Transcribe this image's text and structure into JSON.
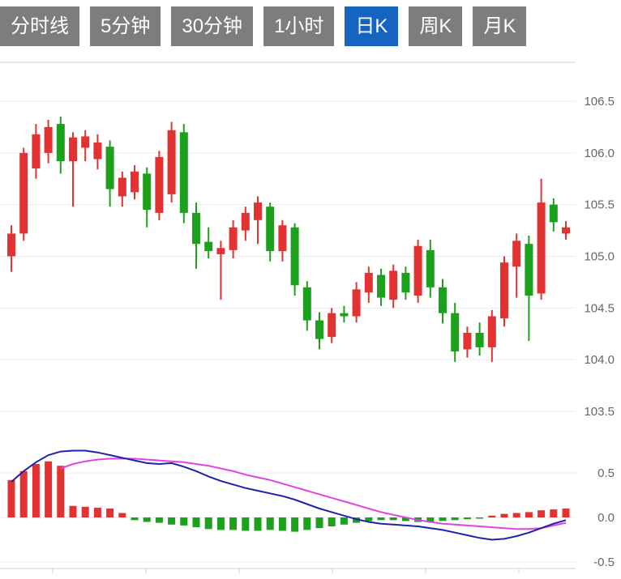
{
  "toolbar": {
    "tabs": [
      {
        "label": "分时线",
        "active": false
      },
      {
        "label": "5分钟",
        "active": false
      },
      {
        "label": "30分钟",
        "active": false
      },
      {
        "label": "1小时",
        "active": false
      },
      {
        "label": "日K",
        "active": true
      },
      {
        "label": "周K",
        "active": false
      },
      {
        "label": "月K",
        "active": false
      }
    ]
  },
  "colors": {
    "up": "#e33232",
    "down": "#1ba11b",
    "dif_line": "#2020aa",
    "dea_line": "#e044e0",
    "tab_bg": "#7d7d7d",
    "tab_active_bg": "#1565c0",
    "tab_text": "#ffffff",
    "grid": "#ebebeb",
    "axis_line": "#d0d0d0",
    "axis_text": "#666666"
  },
  "chart_data": {
    "type": "candlestick+macd",
    "title": "",
    "grid": "horizontal-only",
    "price_panel": {
      "ylim": [
        103.5,
        106.5
      ],
      "yticks": [
        "106.5",
        "106.0",
        "105.5",
        "105.0",
        "104.5",
        "104.0",
        "103.5"
      ],
      "ytick_values": [
        106.5,
        106.0,
        105.5,
        105.0,
        104.5,
        104.0,
        103.5
      ],
      "candles_format": [
        "open",
        "high",
        "low",
        "close"
      ],
      "up_means": "close >= open (red)",
      "candles": [
        [
          105.0,
          105.3,
          104.85,
          105.22
        ],
        [
          105.22,
          106.05,
          105.15,
          106.0
        ],
        [
          105.85,
          106.28,
          105.75,
          106.18
        ],
        [
          106.0,
          106.32,
          105.9,
          106.25
        ],
        [
          106.28,
          106.35,
          105.8,
          105.92
        ],
        [
          105.92,
          106.2,
          105.48,
          106.15
        ],
        [
          106.05,
          106.22,
          105.92,
          106.16
        ],
        [
          105.94,
          106.18,
          105.84,
          106.1
        ],
        [
          106.06,
          106.12,
          105.48,
          105.65
        ],
        [
          105.58,
          105.82,
          105.48,
          105.76
        ],
        [
          105.62,
          105.88,
          105.55,
          105.82
        ],
        [
          105.8,
          105.86,
          105.28,
          105.45
        ],
        [
          105.42,
          106.02,
          105.35,
          105.96
        ],
        [
          105.6,
          106.3,
          105.52,
          106.22
        ],
        [
          106.2,
          106.28,
          105.32,
          105.42
        ],
        [
          105.42,
          105.52,
          104.88,
          105.12
        ],
        [
          105.14,
          105.28,
          104.98,
          105.05
        ],
        [
          105.02,
          105.15,
          104.58,
          105.08
        ],
        [
          105.06,
          105.35,
          104.98,
          105.28
        ],
        [
          105.25,
          105.48,
          105.15,
          105.42
        ],
        [
          105.35,
          105.58,
          105.12,
          105.52
        ],
        [
          105.48,
          105.52,
          104.95,
          105.05
        ],
        [
          105.05,
          105.35,
          104.95,
          105.3
        ],
        [
          105.28,
          105.32,
          104.62,
          104.72
        ],
        [
          104.7,
          104.76,
          104.28,
          104.38
        ],
        [
          104.38,
          104.46,
          104.1,
          104.2
        ],
        [
          104.22,
          104.5,
          104.16,
          104.45
        ],
        [
          104.45,
          104.52,
          104.36,
          104.42
        ],
        [
          104.42,
          104.75,
          104.36,
          104.68
        ],
        [
          104.65,
          104.9,
          104.55,
          104.84
        ],
        [
          104.82,
          104.88,
          104.52,
          104.6
        ],
        [
          104.58,
          104.92,
          104.5,
          104.86
        ],
        [
          104.84,
          104.9,
          104.58,
          104.65
        ],
        [
          104.62,
          105.16,
          104.55,
          105.1
        ],
        [
          105.06,
          105.16,
          104.6,
          104.7
        ],
        [
          104.7,
          104.78,
          104.35,
          104.45
        ],
        [
          104.45,
          104.55,
          103.98,
          104.08
        ],
        [
          104.1,
          104.32,
          104.02,
          104.26
        ],
        [
          104.26,
          104.36,
          104.04,
          104.12
        ],
        [
          104.12,
          104.48,
          103.98,
          104.42
        ],
        [
          104.4,
          105.0,
          104.32,
          104.94
        ],
        [
          104.9,
          105.22,
          104.6,
          105.15
        ],
        [
          105.12,
          105.2,
          104.18,
          104.62
        ],
        [
          104.64,
          105.75,
          104.58,
          105.52
        ],
        [
          105.5,
          105.56,
          105.24,
          105.33
        ],
        [
          105.22,
          105.34,
          105.16,
          105.28
        ]
      ]
    },
    "macd_panel": {
      "ylim": [
        -0.5,
        0.75
      ],
      "yticks": [
        "0.5",
        "0.0",
        "-0.5"
      ],
      "ytick_values": [
        0.5,
        0.0,
        -0.5
      ],
      "hist": [
        0.42,
        0.52,
        0.6,
        0.63,
        0.58,
        0.13,
        0.12,
        0.11,
        0.1,
        0.05,
        -0.03,
        -0.05,
        -0.06,
        -0.08,
        -0.09,
        -0.11,
        -0.13,
        -0.14,
        -0.14,
        -0.15,
        -0.15,
        -0.14,
        -0.15,
        -0.16,
        -0.14,
        -0.12,
        -0.1,
        -0.08,
        -0.06,
        -0.04,
        -0.03,
        -0.03,
        -0.04,
        -0.05,
        -0.05,
        -0.04,
        -0.03,
        -0.02,
        -0.01,
        0.02,
        0.04,
        0.05,
        0.06,
        0.08,
        0.09,
        0.1
      ],
      "dif": [
        0.4,
        0.52,
        0.62,
        0.7,
        0.74,
        0.75,
        0.75,
        0.73,
        0.7,
        0.67,
        0.64,
        0.61,
        0.6,
        0.61,
        0.57,
        0.52,
        0.46,
        0.41,
        0.37,
        0.33,
        0.3,
        0.27,
        0.24,
        0.2,
        0.15,
        0.1,
        0.06,
        0.02,
        -0.02,
        -0.05,
        -0.07,
        -0.08,
        -0.09,
        -0.1,
        -0.12,
        -0.14,
        -0.17,
        -0.2,
        -0.23,
        -0.25,
        -0.24,
        -0.21,
        -0.17,
        -0.12,
        -0.07,
        -0.03
      ],
      "dea": [
        null,
        null,
        null,
        null,
        0.55,
        0.6,
        0.63,
        0.65,
        0.66,
        0.66,
        0.66,
        0.65,
        0.64,
        0.63,
        0.62,
        0.6,
        0.58,
        0.55,
        0.52,
        0.48,
        0.45,
        0.42,
        0.38,
        0.34,
        0.3,
        0.26,
        0.22,
        0.18,
        0.14,
        0.1,
        0.06,
        0.03,
        0.0,
        -0.03,
        -0.05,
        -0.07,
        -0.08,
        -0.09,
        -0.1,
        -0.11,
        -0.12,
        -0.13,
        -0.13,
        -0.12,
        -0.09,
        -0.06
      ]
    }
  }
}
